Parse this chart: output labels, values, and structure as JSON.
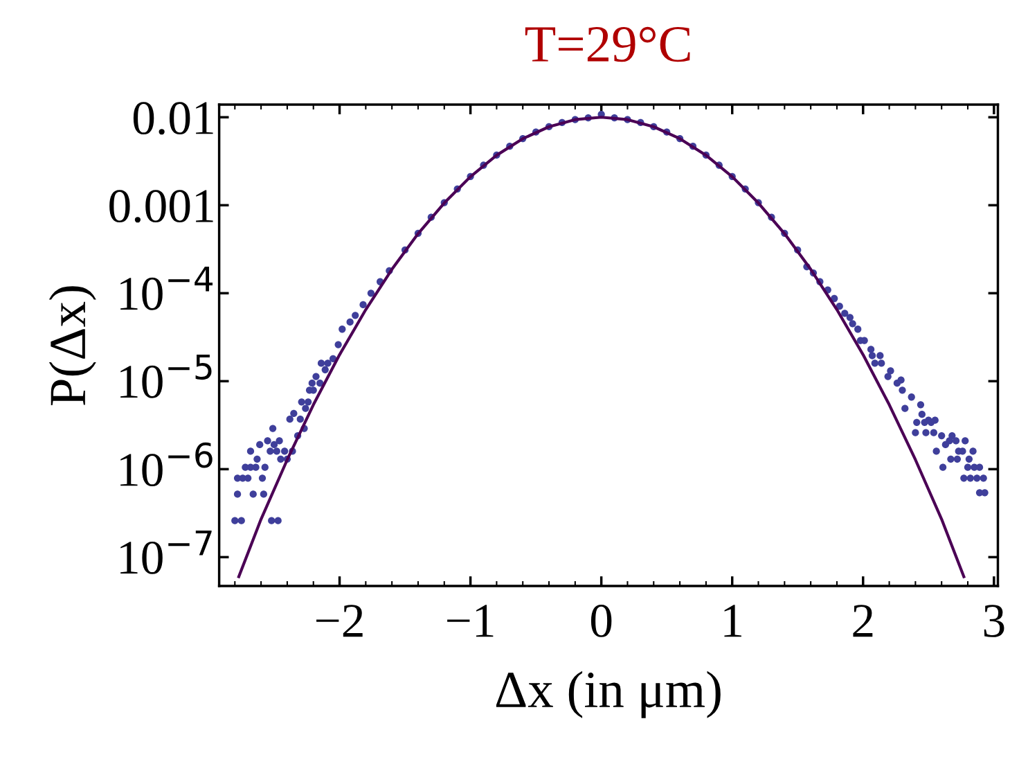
{
  "chart_data": {
    "type": "scatter",
    "title": "T=29°C",
    "xlabel": "Δx (in μm)",
    "ylabel": "P(Δx)",
    "log": "y",
    "grid": false,
    "marker": "circle",
    "xlim": [
      -2.92,
      3.03
    ],
    "ylim": [
      4.7e-08,
      0.0139
    ],
    "xticks": [
      {
        "value": -2,
        "label": "−2"
      },
      {
        "value": -1,
        "label": "−1"
      },
      0,
      1,
      2,
      3
    ],
    "yticks": [
      {
        "value": 1e-07,
        "label": "10$^{−7}$"
      },
      {
        "value": 1e-06,
        "label": "10$^{−6}$"
      },
      {
        "value": 1e-05,
        "label": "10$^{−5}$"
      },
      {
        "value": 0.0001,
        "label": "10$^{−4}$"
      },
      {
        "value": 0.001,
        "label": "0.001"
      },
      {
        "value": 0.01,
        "label": "0.01"
      }
    ],
    "series": [
      {
        "color": "#3f3f9b",
        "x": [
          -2.8,
          -2.75,
          -2.52,
          -2.47,
          -2.78,
          -2.66,
          -2.58,
          -2.78,
          -2.74,
          -2.7,
          -2.59,
          -2.72,
          -2.68,
          -2.64,
          -2.57,
          -2.63,
          -2.45,
          -2.4,
          -2.68,
          -2.53,
          -2.48,
          -2.42,
          -2.36,
          -2.61,
          -2.5,
          -2.55,
          -2.46,
          -2.32,
          -2.51,
          -2.27,
          -2.38,
          -2.3,
          -2.35,
          -2.26,
          -2.29,
          -2.24,
          -2.23,
          -2.2,
          -2.21,
          -2.15,
          -2.18,
          -2.11,
          -2.14,
          -2.09,
          -2.05,
          -2.01,
          -1.98,
          -1.92,
          -1.88,
          -1.82,
          -1.76,
          -1.69,
          -1.62,
          -1.5,
          -1.4,
          -1.3,
          -1.2,
          -1.1,
          -1.0,
          -0.9,
          -0.8,
          -0.7,
          -0.6,
          -0.5,
          -0.4,
          -0.3,
          -0.2,
          -0.1,
          0.0,
          0.1,
          0.2,
          0.3,
          0.4,
          0.5,
          0.6,
          0.7,
          0.8,
          0.9,
          1.0,
          1.1,
          1.2,
          1.3,
          1.4,
          1.5,
          1.57,
          1.62,
          1.67,
          1.73,
          1.78,
          1.82,
          1.86,
          1.9,
          1.92,
          1.96,
          1.98,
          2.01,
          2.06,
          2.07,
          2.13,
          2.09,
          2.14,
          2.21,
          2.19,
          2.29,
          2.26,
          2.3,
          2.37,
          2.32,
          2.44,
          2.45,
          2.5,
          2.55,
          2.41,
          2.47,
          2.52,
          2.4,
          2.48,
          2.54,
          2.6,
          2.68,
          2.66,
          2.71,
          2.78,
          2.63,
          2.56,
          2.73,
          2.76,
          2.84,
          2.67,
          2.72,
          2.81,
          2.61,
          2.8,
          2.85,
          2.89,
          2.77,
          2.82,
          2.87,
          2.92,
          2.89,
          2.93
        ],
        "values": [
          2.6e-07,
          2.6e-07,
          2.6e-07,
          2.6e-07,
          5.2e-07,
          5.2e-07,
          5.2e-07,
          7.9e-07,
          7.9e-07,
          7.9e-07,
          7.9e-07,
          1.05e-06,
          1.05e-06,
          1.05e-06,
          1.05e-06,
          1.3e-06,
          1.3e-06,
          1.3e-06,
          1.6e-06,
          1.6e-06,
          1.6e-06,
          1.6e-06,
          1.6e-06,
          1.9e-06,
          1.9e-06,
          2.1e-06,
          2.1e-06,
          2.4e-06,
          2.9e-06,
          2.9e-06,
          3.7e-06,
          3.7e-06,
          4.3e-06,
          4.9e-06,
          5.8e-06,
          5.8e-06,
          7.9e-06,
          7.9e-06,
          9.5e-06,
          9.5e-06,
          1.13e-05,
          1.35e-05,
          1.6e-05,
          1.6e-05,
          1.8e-05,
          2.6e-05,
          3.9e-05,
          4.7e-05,
          5.6e-05,
          7.4e-05,
          0.0001,
          0.000135,
          0.00018,
          0.00031,
          0.00048,
          0.00073,
          0.00107,
          0.00153,
          0.00212,
          0.00285,
          0.00371,
          0.00468,
          0.00572,
          0.00679,
          0.00781,
          0.0087,
          0.00941,
          0.00986,
          0.0108,
          0.00986,
          0.00941,
          0.0087,
          0.00781,
          0.00679,
          0.00572,
          0.00468,
          0.00371,
          0.00285,
          0.00212,
          0.00153,
          0.00107,
          0.00073,
          0.00048,
          0.00031,
          0.0002,
          0.00017,
          0.000135,
          0.000109,
          8.7e-05,
          7.1e-05,
          5.9e-05,
          5.3e-05,
          4.5e-05,
          3.9e-05,
          2.9e-05,
          2.9e-05,
          2.3e-05,
          1.95e-05,
          1.95e-05,
          1.6e-05,
          1.6e-05,
          1.31e-05,
          1.13e-05,
          1.03e-05,
          9.5e-06,
          7.9e-06,
          6.6e-06,
          4.9e-06,
          5.4e-06,
          4.2e-06,
          3.6e-06,
          3.6e-06,
          3.4e-06,
          3.4e-06,
          3.4e-06,
          2.6e-06,
          2.6e-06,
          2.6e-06,
          2.4e-06,
          2.4e-06,
          2.1e-06,
          2.1e-06,
          2.1e-06,
          1.9e-06,
          1.6e-06,
          1.6e-06,
          1.6e-06,
          1.6e-06,
          1.3e-06,
          1.3e-06,
          1.3e-06,
          1.05e-06,
          1.05e-06,
          1.05e-06,
          1.05e-06,
          7.9e-07,
          7.9e-07,
          7.9e-07,
          7.9e-07,
          5.4e-07,
          5.4e-07
        ]
      },
      {
        "type": "line",
        "color": "#4b0055",
        "marker": "none",
        "line_style": "solid",
        "x": [
          -2.77,
          -2.6,
          -2.4,
          -2.2,
          -2.0,
          -1.8,
          -1.6,
          -1.4,
          -1.2,
          -1.0,
          -0.8,
          -0.6,
          -0.4,
          -0.2,
          0.0,
          0.2,
          0.4,
          0.6,
          0.8,
          1.0,
          1.2,
          1.4,
          1.6,
          1.8,
          2.0,
          2.2,
          2.4,
          2.6,
          2.77
        ],
        "values": [
          6e-08,
          2.7e-07,
          1.28e-06,
          5.4e-06,
          2e-05,
          6.5e-05,
          0.000187,
          0.000475,
          0.00106,
          0.00211,
          0.0037,
          0.00571,
          0.0078,
          0.0094,
          0.01,
          0.0094,
          0.0078,
          0.00571,
          0.0037,
          0.00211,
          0.00106,
          0.000475,
          0.000187,
          6.5e-05,
          2e-05,
          5.4e-06,
          1.28e-06,
          2.7e-07,
          6e-08
        ]
      }
    ]
  }
}
